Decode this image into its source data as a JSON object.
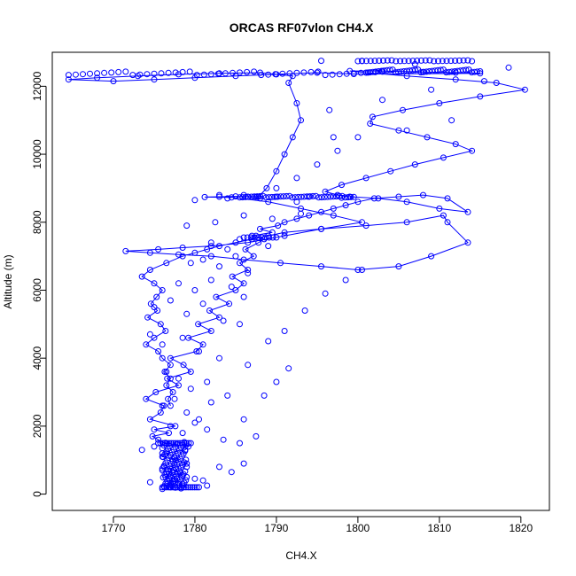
{
  "chart_data": {
    "type": "scatter",
    "title": "ORCAS RF07vlon CH4.X",
    "xlabel": "CH4.X",
    "ylabel": "Altitude (m)",
    "xlim": [
      1762.5,
      1823.5
    ],
    "ylim": [
      -480,
      13000
    ],
    "x_ticks": [
      1770,
      1780,
      1790,
      1800,
      1810,
      1820
    ],
    "y_ticks": [
      0,
      2000,
      4000,
      6000,
      8000,
      10000,
      12000
    ],
    "grid": false,
    "legend": "none",
    "colors": {
      "series": "#0000ff",
      "axis": "#000000"
    },
    "series": [
      {
        "marker": "open-circle",
        "connected": true,
        "x": [
          1777,
          1776.6,
          1777.2,
          1776.9,
          1777.6,
          1776.4,
          1777.8,
          1776.8,
          1778.5,
          1777.4,
          1778.2,
          1776.2,
          1777.0,
          1779.0,
          1777.7,
          1776.0,
          1776.5,
          1778.8,
          1779.2,
          1776.3,
          1775.5,
          1774.8,
          1776.8,
          1775.0,
          1777.6,
          1774.5,
          1775.8,
          1776.2,
          1774.0,
          1775.2,
          1778.0,
          1776.6,
          1779.5,
          1778.6,
          1777.0,
          1780.2,
          1781.0,
          1779.2,
          1782.0,
          1780.4,
          1783.0,
          1781.8,
          1784.2,
          1782.6,
          1785.0,
          1786.0,
          1784.6,
          1786.5,
          1785.5,
          1787.2,
          1786.2,
          1787.8,
          1788.5,
          1787.0,
          1789.5,
          1788.0,
          1790.2,
          1791.0,
          1792.5,
          1794.0,
          1795.5,
          1797.0,
          1798.5,
          1800.0,
          1802.0,
          1805.0,
          1808.0,
          1811.0,
          1813.5,
          1810.0,
          1806.0,
          1802.5,
          1799.0,
          1797.5,
          1796.0,
          1798.0,
          1801.0,
          1804.0,
          1807.0,
          1810.5,
          1814.0,
          1812.0,
          1808.5,
          1805.0,
          1801.5,
          1801.8,
          1805.5,
          1810.0,
          1815.0,
          1820.5,
          1817.0,
          1812.0,
          1806.0,
          1801.0,
          1799.0,
          1803.0,
          1808.0,
          1812.0,
          1815.0,
          1799.5,
          1795.0,
          1790.0,
          1785.0,
          1780.0,
          1775.0,
          1770.0,
          1764.5,
          1768.0,
          1773.0,
          1778.0,
          1783.0,
          1788.0,
          1792.0,
          1791.5,
          1792.5,
          1793.0,
          1792.0,
          1791.0,
          1790.0,
          1788.8,
          1787.8,
          1786.5,
          1787.5,
          1785.0,
          1783.0,
          1781.2,
          1784.5,
          1789.0,
          1793.0,
          1797.0,
          1800.5,
          1795.5,
          1791.0,
          1786.5,
          1782.0,
          1778.5,
          1775.5,
          1771.5,
          1774.5,
          1778.0,
          1782.0,
          1786.0,
          1790.5,
          1795.5,
          1800.0,
          1805.0,
          1809.0,
          1813.5,
          1811.0,
          1810.5,
          1806.0,
          1801.0,
          1795.5,
          1791.0,
          1789.0,
          1787.0,
          1785.0,
          1783.0,
          1781.5,
          1780.0,
          1778.5,
          1776.5,
          1774.5,
          1773.5,
          1775.0,
          1776.0,
          1775.3,
          1774.6,
          1775.4,
          1774.2,
          1775.8,
          1776.4,
          1775.0,
          1774.0,
          1775.5,
          1776.0,
          1777.0,
          1776.3,
          1777.0,
          1776.5,
          1777.3,
          1776.7,
          1777.0
        ]
      },
      {
        "marker": "open-circle",
        "connected": false,
        "x": [
          1776.5,
          1777.5,
          1778.5,
          1776.0,
          1779.0,
          1780.0,
          1781.5,
          1783.0,
          1784.5,
          1786.0,
          1785.5,
          1787.5,
          1786.0,
          1788.5,
          1790.0,
          1791.5,
          1789.0,
          1791.0,
          1793.5,
          1796.0,
          1798.5,
          1800.5,
          1790.0,
          1792.5,
          1795.0,
          1797.5,
          1800.0,
          1806.0,
          1811.5,
          1803.0,
          1809.0,
          1815.5,
          1818.5,
          1807.0,
          1800.5,
          1795.5,
          1796.5,
          1797.0,
          1792.5,
          1788.0,
          1784.0,
          1780.0,
          1783.0,
          1786.0,
          1790.0,
          1794.0,
          1798.0,
          1779.0,
          1782.5,
          1786.0,
          1789.5,
          1793.0,
          1782.0,
          1784.0,
          1785.5,
          1787.5,
          1789.0,
          1779.5,
          1781.0,
          1783.0,
          1785.0,
          1786.5,
          1778.0,
          1780.0,
          1782.0,
          1784.5,
          1786.0,
          1775.0,
          1777.0,
          1779.0,
          1781.0,
          1783.5,
          1785.5,
          1774.5,
          1776.0,
          1778.5,
          1780.5,
          1783.0,
          1786.5,
          1776.5,
          1778.0,
          1779.5,
          1781.5,
          1784.0,
          1776.0,
          1777.5,
          1779.0,
          1780.5,
          1782.0,
          1777.0,
          1778.5,
          1780.0,
          1781.5,
          1783.5,
          1775.0,
          1773.5,
          1777.5,
          1776.0,
          1779.0,
          1781.0,
          1774.5,
          1778.0
        ],
        "y": [
          600,
          900,
          300,
          1200,
          800,
          450,
          250,
          800,
          650,
          900,
          1500,
          1700,
          2200,
          2900,
          3300,
          3700,
          4500,
          4800,
          5400,
          5900,
          6300,
          6600,
          9000,
          9300,
          9700,
          10100,
          10500,
          10700,
          11000,
          11600,
          11900,
          12150,
          12550,
          12650,
          12750,
          12750,
          11300,
          10500,
          8600,
          8700,
          8700,
          8650,
          8800,
          8800,
          8750,
          8750,
          8720,
          7900,
          8000,
          8200,
          8100,
          8250,
          7400,
          7200,
          7500,
          7600,
          7300,
          6800,
          6900,
          6700,
          7000,
          6500,
          6200,
          6000,
          6300,
          6100,
          5800,
          5500,
          5700,
          5300,
          5600,
          5100,
          5000,
          4700,
          4400,
          4600,
          4200,
          4000,
          3800,
          3600,
          3400,
          3100,
          3300,
          2900,
          2600,
          2800,
          2400,
          2200,
          2700,
          2000,
          1800,
          2100,
          1900,
          1600,
          1400,
          1300,
          1100,
          700,
          500,
          400,
          350,
          300
        ]
      }
    ]
  }
}
